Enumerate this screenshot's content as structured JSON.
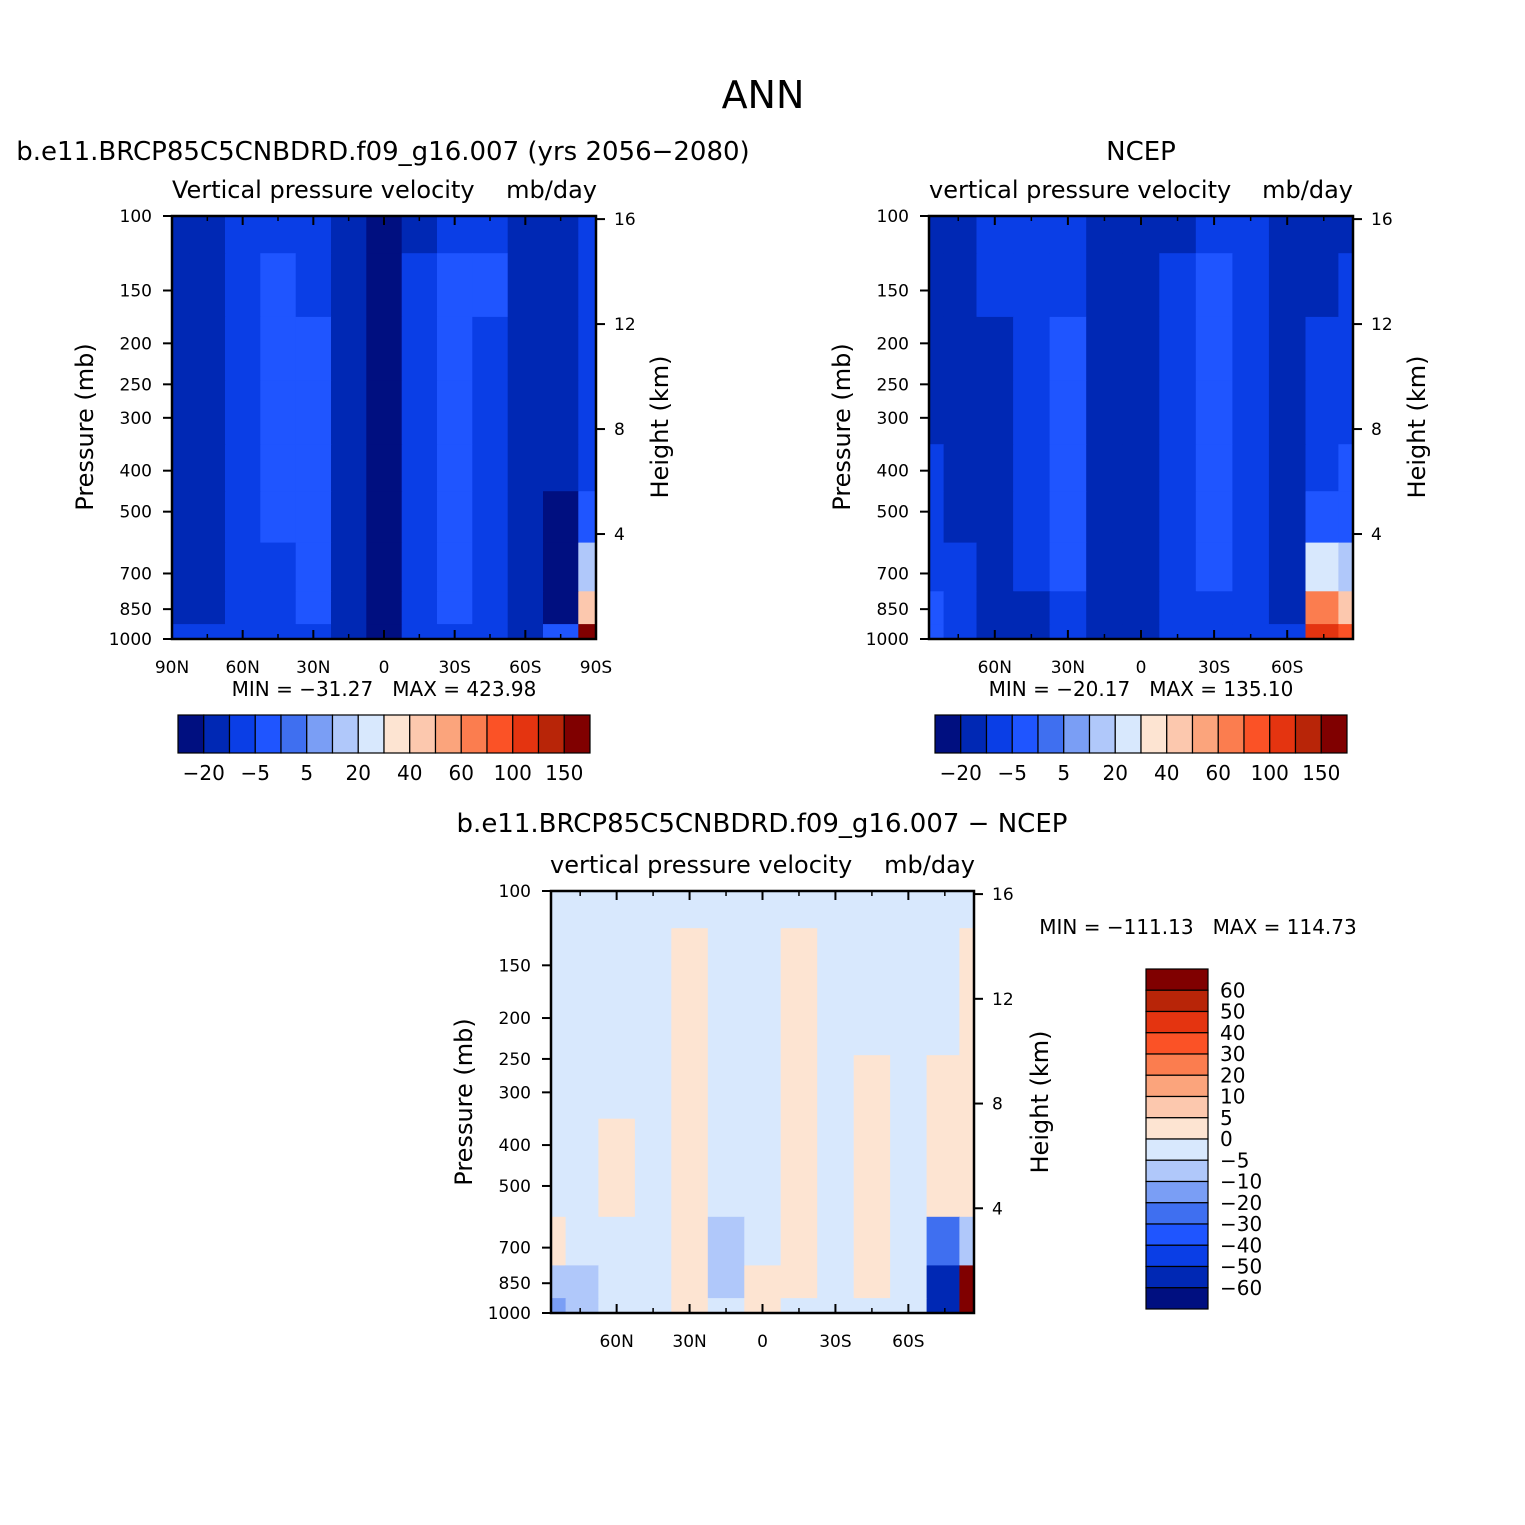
{
  "figure": {
    "title": "ANN",
    "colors": {
      "blue_scale": [
        "#000f80",
        "#0028b4",
        "#0a3ee6",
        "#1f55ff",
        "#3f6ff0",
        "#7a9ef5",
        "#b0c8fa",
        "#d8e8fd"
      ],
      "red_scale": [
        "#fde4d2",
        "#fcc8ae",
        "#fba47c",
        "#fb7d4f",
        "#fb5226",
        "#e43410",
        "#b82508",
        "#800000"
      ],
      "background_fill": "#ffffff"
    }
  },
  "chart_data": [
    {
      "type": "heatmap",
      "title": "b.e11.BRCP85C5CNBDRD.f09_g16.007 (yrs 2056−2080)",
      "subtitle": "Vertical pressure velocity",
      "units": "mb/day",
      "ylabel": "Pressure (mb)",
      "ylabel_right": "Height (km)",
      "x_tick_labels": [
        "90N",
        "60N",
        "30N",
        "0",
        "30S",
        "60S",
        "90S"
      ],
      "x_ticks": [
        90,
        60,
        30,
        0,
        -30,
        -60,
        -90
      ],
      "xlim": [
        90,
        -90
      ],
      "y_tick_labels": [
        "100",
        "150",
        "200",
        "250",
        "300",
        "400",
        "500",
        "700",
        "850",
        "1000"
      ],
      "y_ticks": [
        100,
        150,
        200,
        250,
        300,
        400,
        500,
        700,
        850,
        1000
      ],
      "ylim": [
        1000,
        100
      ],
      "y_scale": "log",
      "height_tick_labels": [
        "16",
        "12",
        "8",
        "4"
      ],
      "height_ticks": [
        16,
        12,
        8,
        4
      ],
      "stats": "MIN = −31.27   MAX = 423.98",
      "colorbar_labels": [
        "−20",
        "−5",
        "5",
        "20",
        "40",
        "60",
        "100",
        "150"
      ],
      "colorbar_orientation": "horizontal",
      "latitudes": [
        90,
        75,
        60,
        45,
        30,
        15,
        0,
        -15,
        -30,
        -45,
        -60,
        -75,
        -90
      ],
      "pressure_levels": [
        100,
        150,
        200,
        300,
        400,
        500,
        700,
        850,
        1000
      ],
      "values": [
        [
          -15,
          -12,
          -8,
          -6,
          -10,
          -16,
          -22,
          -12,
          -8,
          -6,
          -12,
          -14,
          -10
        ],
        [
          -15,
          -12,
          -8,
          -4,
          -6,
          -14,
          -24,
          -10,
          -4,
          -5,
          -14,
          -16,
          -10
        ],
        [
          -16,
          -12,
          -7,
          -3,
          -5,
          -14,
          -26,
          -8,
          -3,
          -6,
          -15,
          -18,
          -10
        ],
        [
          -16,
          -13,
          -6,
          -3,
          -4,
          -14,
          -28,
          -8,
          -2,
          -7,
          -16,
          -19,
          -8
        ],
        [
          -17,
          -14,
          -6,
          -4,
          -3,
          -15,
          -29,
          -9,
          -2,
          -7,
          -17,
          -20,
          -6
        ],
        [
          -18,
          -15,
          -7,
          -5,
          -3,
          -16,
          -30,
          -10,
          -3,
          -6,
          -18,
          -22,
          -5
        ],
        [
          -16,
          -14,
          -8,
          -6,
          -4,
          -16,
          -30,
          -10,
          -4,
          -6,
          -18,
          -24,
          10
        ],
        [
          -12,
          -12,
          -8,
          -7,
          -5,
          -16,
          -30,
          -10,
          -5,
          -6,
          -19,
          -26,
          40
        ],
        [
          -10,
          -10,
          -9,
          -8,
          -7,
          -14,
          -26,
          -10,
          -7,
          -8,
          -15,
          -5,
          150
        ]
      ]
    },
    {
      "type": "heatmap",
      "title": "NCEP",
      "subtitle": "vertical pressure velocity",
      "units": "mb/day",
      "ylabel": "Pressure (mb)",
      "ylabel_right": "Height (km)",
      "x_tick_labels": [
        "60N",
        "30N",
        "0",
        "30S",
        "60S"
      ],
      "x_ticks": [
        60,
        30,
        0,
        -30,
        -60
      ],
      "xlim": [
        87,
        -87
      ],
      "y_tick_labels": [
        "100",
        "150",
        "200",
        "250",
        "300",
        "400",
        "500",
        "700",
        "850",
        "1000"
      ],
      "y_ticks": [
        100,
        150,
        200,
        250,
        300,
        400,
        500,
        700,
        850,
        1000
      ],
      "ylim": [
        1000,
        100
      ],
      "y_scale": "log",
      "height_tick_labels": [
        "16",
        "12",
        "8",
        "4"
      ],
      "height_ticks": [
        16,
        12,
        8,
        4
      ],
      "stats": "MIN = −20.17   MAX = 135.10",
      "colorbar_labels": [
        "−20",
        "−5",
        "5",
        "20",
        "40",
        "60",
        "100",
        "150"
      ],
      "colorbar_orientation": "horizontal",
      "latitudes": [
        87,
        75,
        60,
        45,
        30,
        15,
        0,
        -15,
        -30,
        -45,
        -60,
        -75,
        -87
      ],
      "pressure_levels": [
        100,
        150,
        200,
        300,
        400,
        500,
        700,
        850,
        1000
      ],
      "values": [
        [
          -15,
          -14,
          -10,
          -8,
          -10,
          -16,
          -20,
          -12,
          -8,
          -8,
          -14,
          -14,
          -12
        ],
        [
          -14,
          -13,
          -10,
          -6,
          -6,
          -14,
          -20,
          -8,
          -4,
          -6,
          -14,
          -12,
          -10
        ],
        [
          -13,
          -13,
          -12,
          -6,
          -3,
          -14,
          -20,
          -6,
          -3,
          -6,
          -15,
          -10,
          -8
        ],
        [
          -12,
          -14,
          -14,
          -7,
          -2,
          -15,
          -20,
          -7,
          -2,
          -7,
          -16,
          -8,
          -6
        ],
        [
          -10,
          -14,
          -15,
          -8,
          -2,
          -15,
          -20,
          -8,
          -3,
          -8,
          -16,
          -6,
          -4
        ],
        [
          -8,
          -12,
          -16,
          -9,
          -3,
          -16,
          -20,
          -9,
          -4,
          -8,
          -18,
          -4,
          -2
        ],
        [
          -6,
          -10,
          -16,
          -10,
          -4,
          -16,
          -20,
          -10,
          -5,
          -8,
          -18,
          20,
          10
        ],
        [
          -4,
          -8,
          -15,
          -11,
          -6,
          -16,
          -18,
          -10,
          -6,
          -8,
          -16,
          60,
          40
        ],
        [
          -4,
          -8,
          -12,
          -12,
          -8,
          -14,
          -16,
          -10,
          -8,
          -10,
          -10,
          100,
          80
        ]
      ]
    },
    {
      "type": "heatmap",
      "title": "b.e11.BRCP85C5CNBDRD.f09_g16.007 − NCEP",
      "subtitle": "vertical pressure velocity",
      "units": "mb/day",
      "ylabel": "Pressure (mb)",
      "ylabel_right": "Height (km)",
      "x_tick_labels": [
        "60N",
        "30N",
        "0",
        "30S",
        "60S"
      ],
      "x_ticks": [
        60,
        30,
        0,
        -30,
        -60
      ],
      "xlim": [
        87,
        -87
      ],
      "y_tick_labels": [
        "100",
        "150",
        "200",
        "250",
        "300",
        "400",
        "500",
        "700",
        "850",
        "1000"
      ],
      "y_ticks": [
        100,
        150,
        200,
        250,
        300,
        400,
        500,
        700,
        850,
        1000
      ],
      "ylim": [
        1000,
        100
      ],
      "y_scale": "log",
      "height_tick_labels": [
        "16",
        "12",
        "8",
        "4"
      ],
      "height_ticks": [
        16,
        12,
        8,
        4
      ],
      "stats": "MIN = −111.13   MAX = 114.73",
      "colorbar_labels": [
        "60",
        "50",
        "40",
        "30",
        "20",
        "10",
        "5",
        "0",
        "−5",
        "−10",
        "−20",
        "−30",
        "−40",
        "−50",
        "−60"
      ],
      "colorbar_orientation": "vertical",
      "latitudes": [
        87,
        75,
        60,
        45,
        30,
        15,
        0,
        -15,
        -30,
        -45,
        -60,
        -75,
        -87
      ],
      "pressure_levels": [
        100,
        150,
        200,
        300,
        400,
        500,
        700,
        850,
        1000
      ],
      "values": [
        [
          -2,
          -2,
          -2,
          -2,
          -2,
          -2,
          -2,
          -2,
          -2,
          -2,
          -2,
          -2,
          -2
        ],
        [
          -2,
          -2,
          -2,
          -2,
          2,
          -2,
          -2,
          2,
          -2,
          -2,
          -2,
          -2,
          2
        ],
        [
          -2,
          -2,
          -2,
          -2,
          2,
          -2,
          -2,
          2,
          -2,
          -2,
          -2,
          -2,
          2
        ],
        [
          -2,
          -2,
          -2,
          -2,
          2,
          -2,
          -2,
          2,
          -2,
          2,
          -2,
          2,
          2
        ],
        [
          -2,
          -2,
          2,
          -2,
          2,
          -2,
          -2,
          2,
          -2,
          2,
          -2,
          2,
          2
        ],
        [
          -2,
          -2,
          2,
          -2,
          2,
          -2,
          -2,
          2,
          -2,
          2,
          -2,
          2,
          2
        ],
        [
          2,
          -2,
          -2,
          -2,
          2,
          -6,
          -2,
          2,
          -2,
          2,
          -2,
          -30,
          -10
        ],
        [
          -8,
          -6,
          -2,
          -2,
          3,
          -6,
          3,
          2,
          -2,
          2,
          -3,
          -55,
          60
        ],
        [
          -15,
          -8,
          -2,
          -2,
          4,
          -2,
          4,
          -2,
          -2,
          -2,
          -2,
          -60,
          70
        ]
      ]
    }
  ]
}
